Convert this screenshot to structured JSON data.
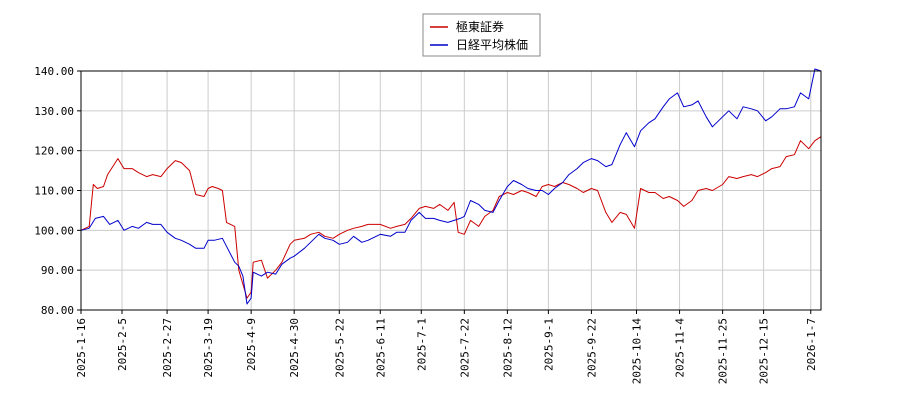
{
  "chart_data": {
    "type": "line",
    "ylim": [
      80,
      140
    ],
    "yticks": [
      "80.00",
      "90.00",
      "100.00",
      "110.00",
      "120.00",
      "130.00",
      "140.00"
    ],
    "xlim": [
      "2025-01-16",
      "2026-01-12"
    ],
    "xticks": [
      "2025-1-16",
      "2025-2-5",
      "2025-2-27",
      "2025-3-19",
      "2025-4-9",
      "2025-4-30",
      "2025-5-22",
      "2025-6-11",
      "2025-7-1",
      "2025-7-22",
      "2025-8-12",
      "2025-9-1",
      "2025-9-22",
      "2025-10-14",
      "2025-11-4",
      "2025-11-25",
      "2025-12-15",
      "2026-1-7"
    ],
    "grid": true,
    "legend_position": "top-center",
    "series": [
      {
        "name": "極東証券",
        "color": "#cc0000",
        "points": [
          [
            "2025-01-16",
            100.0
          ],
          [
            "2025-01-20",
            101.0
          ],
          [
            "2025-01-22",
            111.5
          ],
          [
            "2025-01-24",
            110.5
          ],
          [
            "2025-01-27",
            111.0
          ],
          [
            "2025-01-29",
            114.0
          ],
          [
            "2025-02-03",
            118.0
          ],
          [
            "2025-02-06",
            115.5
          ],
          [
            "2025-02-10",
            115.5
          ],
          [
            "2025-02-13",
            114.5
          ],
          [
            "2025-02-17",
            113.5
          ],
          [
            "2025-02-20",
            114.0
          ],
          [
            "2025-02-24",
            113.5
          ],
          [
            "2025-02-27",
            115.5
          ],
          [
            "2025-03-03",
            117.5
          ],
          [
            "2025-03-06",
            117.0
          ],
          [
            "2025-03-10",
            115.0
          ],
          [
            "2025-03-13",
            109.0
          ],
          [
            "2025-03-17",
            108.5
          ],
          [
            "2025-03-19",
            110.5
          ],
          [
            "2025-03-21",
            111.0
          ],
          [
            "2025-03-24",
            110.5
          ],
          [
            "2025-03-26",
            110.0
          ],
          [
            "2025-03-28",
            102.0
          ],
          [
            "2025-04-01",
            101.0
          ],
          [
            "2025-04-03",
            90.0
          ],
          [
            "2025-04-07",
            83.0
          ],
          [
            "2025-04-09",
            84.5
          ],
          [
            "2025-04-10",
            92.0
          ],
          [
            "2025-04-14",
            92.5
          ],
          [
            "2025-04-17",
            88.0
          ],
          [
            "2025-04-21",
            90.0
          ],
          [
            "2025-04-24",
            92.0
          ],
          [
            "2025-04-28",
            96.5
          ],
          [
            "2025-04-30",
            97.5
          ],
          [
            "2025-05-05",
            98.0
          ],
          [
            "2025-05-08",
            99.0
          ],
          [
            "2025-05-12",
            99.5
          ],
          [
            "2025-05-15",
            98.5
          ],
          [
            "2025-05-19",
            98.0
          ],
          [
            "2025-05-22",
            99.0
          ],
          [
            "2025-05-26",
            100.0
          ],
          [
            "2025-05-29",
            100.5
          ],
          [
            "2025-06-02",
            101.0
          ],
          [
            "2025-06-05",
            101.5
          ],
          [
            "2025-06-09",
            101.5
          ],
          [
            "2025-06-11",
            101.5
          ],
          [
            "2025-06-16",
            100.5
          ],
          [
            "2025-06-19",
            101.0
          ],
          [
            "2025-06-23",
            101.5
          ],
          [
            "2025-06-26",
            103.0
          ],
          [
            "2025-06-30",
            105.5
          ],
          [
            "2025-07-03",
            106.0
          ],
          [
            "2025-07-07",
            105.5
          ],
          [
            "2025-07-10",
            106.5
          ],
          [
            "2025-07-14",
            105.0
          ],
          [
            "2025-07-17",
            107.0
          ],
          [
            "2025-07-19",
            99.5
          ],
          [
            "2025-07-22",
            99.0
          ],
          [
            "2025-07-25",
            102.5
          ],
          [
            "2025-07-29",
            101.0
          ],
          [
            "2025-08-01",
            103.5
          ],
          [
            "2025-08-05",
            105.0
          ],
          [
            "2025-08-08",
            108.5
          ],
          [
            "2025-08-12",
            109.5
          ],
          [
            "2025-08-15",
            109.0
          ],
          [
            "2025-08-19",
            110.0
          ],
          [
            "2025-08-22",
            109.5
          ],
          [
            "2025-08-26",
            108.5
          ],
          [
            "2025-08-29",
            111.0
          ],
          [
            "2025-09-01",
            111.5
          ],
          [
            "2025-09-04",
            111.0
          ],
          [
            "2025-09-08",
            112.0
          ],
          [
            "2025-09-11",
            111.5
          ],
          [
            "2025-09-15",
            110.5
          ],
          [
            "2025-09-18",
            109.5
          ],
          [
            "2025-09-22",
            110.5
          ],
          [
            "2025-09-25",
            110.0
          ],
          [
            "2025-09-29",
            104.5
          ],
          [
            "2025-10-02",
            102.0
          ],
          [
            "2025-10-06",
            104.5
          ],
          [
            "2025-10-09",
            104.0
          ],
          [
            "2025-10-13",
            100.5
          ],
          [
            "2025-10-16",
            110.5
          ],
          [
            "2025-10-20",
            109.5
          ],
          [
            "2025-10-23",
            109.5
          ],
          [
            "2025-10-27",
            108.0
          ],
          [
            "2025-10-30",
            108.5
          ],
          [
            "2025-11-03",
            107.5
          ],
          [
            "2025-11-06",
            106.0
          ],
          [
            "2025-11-10",
            107.5
          ],
          [
            "2025-11-13",
            110.0
          ],
          [
            "2025-11-17",
            110.5
          ],
          [
            "2025-11-20",
            110.0
          ],
          [
            "2025-11-25",
            111.5
          ],
          [
            "2025-11-28",
            113.5
          ],
          [
            "2025-12-02",
            113.0
          ],
          [
            "2025-12-05",
            113.5
          ],
          [
            "2025-12-09",
            114.0
          ],
          [
            "2025-12-12",
            113.5
          ],
          [
            "2025-12-16",
            114.5
          ],
          [
            "2025-12-19",
            115.5
          ],
          [
            "2025-12-23",
            116.0
          ],
          [
            "2025-12-26",
            118.5
          ],
          [
            "2025-12-30",
            119.0
          ],
          [
            "2026-01-02",
            122.5
          ],
          [
            "2026-01-06",
            120.5
          ],
          [
            "2026-01-09",
            122.5
          ],
          [
            "2026-01-12",
            123.5
          ]
        ]
      },
      {
        "name": "日経平均株価",
        "color": "#0000cc",
        "points": [
          [
            "2025-01-16",
            100.0
          ],
          [
            "2025-01-20",
            100.5
          ],
          [
            "2025-01-23",
            103.0
          ],
          [
            "2025-01-27",
            103.5
          ],
          [
            "2025-01-30",
            101.5
          ],
          [
            "2025-02-03",
            102.5
          ],
          [
            "2025-02-06",
            100.0
          ],
          [
            "2025-02-10",
            101.0
          ],
          [
            "2025-02-13",
            100.5
          ],
          [
            "2025-02-17",
            102.0
          ],
          [
            "2025-02-20",
            101.5
          ],
          [
            "2025-02-24",
            101.5
          ],
          [
            "2025-02-27",
            99.5
          ],
          [
            "2025-03-03",
            98.0
          ],
          [
            "2025-03-06",
            97.5
          ],
          [
            "2025-03-10",
            96.5
          ],
          [
            "2025-03-13",
            95.5
          ],
          [
            "2025-03-17",
            95.5
          ],
          [
            "2025-03-19",
            97.5
          ],
          [
            "2025-03-22",
            97.5
          ],
          [
            "2025-03-26",
            98.0
          ],
          [
            "2025-03-28",
            96.0
          ],
          [
            "2025-04-01",
            92.0
          ],
          [
            "2025-04-03",
            91.0
          ],
          [
            "2025-04-05",
            88.5
          ],
          [
            "2025-04-07",
            81.5
          ],
          [
            "2025-04-09",
            83.0
          ],
          [
            "2025-04-10",
            89.5
          ],
          [
            "2025-04-14",
            88.5
          ],
          [
            "2025-04-17",
            89.5
          ],
          [
            "2025-04-21",
            89.0
          ],
          [
            "2025-04-24",
            91.5
          ],
          [
            "2025-04-28",
            93.0
          ],
          [
            "2025-04-30",
            93.5
          ],
          [
            "2025-05-05",
            95.5
          ],
          [
            "2025-05-08",
            97.0
          ],
          [
            "2025-05-12",
            99.0
          ],
          [
            "2025-05-15",
            98.0
          ],
          [
            "2025-05-19",
            97.5
          ],
          [
            "2025-05-22",
            96.5
          ],
          [
            "2025-05-26",
            97.0
          ],
          [
            "2025-05-29",
            98.5
          ],
          [
            "2025-06-02",
            97.0
          ],
          [
            "2025-06-05",
            97.5
          ],
          [
            "2025-06-09",
            98.5
          ],
          [
            "2025-06-11",
            99.0
          ],
          [
            "2025-06-16",
            98.5
          ],
          [
            "2025-06-19",
            99.5
          ],
          [
            "2025-06-23",
            99.5
          ],
          [
            "2025-06-26",
            102.5
          ],
          [
            "2025-06-30",
            104.5
          ],
          [
            "2025-07-03",
            103.0
          ],
          [
            "2025-07-07",
            103.0
          ],
          [
            "2025-07-10",
            102.5
          ],
          [
            "2025-07-14",
            102.0
          ],
          [
            "2025-07-17",
            102.5
          ],
          [
            "2025-07-20",
            103.0
          ],
          [
            "2025-07-22",
            103.5
          ],
          [
            "2025-07-25",
            107.5
          ],
          [
            "2025-07-29",
            106.5
          ],
          [
            "2025-08-01",
            105.0
          ],
          [
            "2025-08-05",
            104.5
          ],
          [
            "2025-08-08",
            107.5
          ],
          [
            "2025-08-12",
            111.0
          ],
          [
            "2025-08-15",
            112.5
          ],
          [
            "2025-08-19",
            111.5
          ],
          [
            "2025-08-22",
            110.5
          ],
          [
            "2025-08-26",
            110.0
          ],
          [
            "2025-08-29",
            110.0
          ],
          [
            "2025-09-01",
            109.0
          ],
          [
            "2025-09-04",
            110.5
          ],
          [
            "2025-09-08",
            112.0
          ],
          [
            "2025-09-11",
            114.0
          ],
          [
            "2025-09-15",
            115.5
          ],
          [
            "2025-09-18",
            117.0
          ],
          [
            "2025-09-22",
            118.0
          ],
          [
            "2025-09-25",
            117.5
          ],
          [
            "2025-09-29",
            116.0
          ],
          [
            "2025-10-02",
            116.5
          ],
          [
            "2025-10-06",
            121.5
          ],
          [
            "2025-10-09",
            124.5
          ],
          [
            "2025-10-13",
            121.0
          ],
          [
            "2025-10-16",
            125.0
          ],
          [
            "2025-10-20",
            127.0
          ],
          [
            "2025-10-23",
            128.0
          ],
          [
            "2025-10-27",
            131.0
          ],
          [
            "2025-10-30",
            133.0
          ],
          [
            "2025-11-03",
            134.5
          ],
          [
            "2025-11-06",
            131.0
          ],
          [
            "2025-11-10",
            131.5
          ],
          [
            "2025-11-13",
            132.5
          ],
          [
            "2025-11-17",
            128.5
          ],
          [
            "2025-11-20",
            126.0
          ],
          [
            "2025-11-25",
            128.5
          ],
          [
            "2025-11-28",
            130.0
          ],
          [
            "2025-12-02",
            128.0
          ],
          [
            "2025-12-05",
            131.0
          ],
          [
            "2025-12-09",
            130.5
          ],
          [
            "2025-12-12",
            130.0
          ],
          [
            "2025-12-16",
            127.5
          ],
          [
            "2025-12-19",
            128.5
          ],
          [
            "2025-12-23",
            130.5
          ],
          [
            "2025-12-26",
            130.5
          ],
          [
            "2025-12-30",
            131.0
          ],
          [
            "2026-01-02",
            134.5
          ],
          [
            "2026-01-06",
            133.0
          ],
          [
            "2026-01-09",
            140.5
          ],
          [
            "2026-01-12",
            140.0
          ]
        ]
      }
    ]
  }
}
